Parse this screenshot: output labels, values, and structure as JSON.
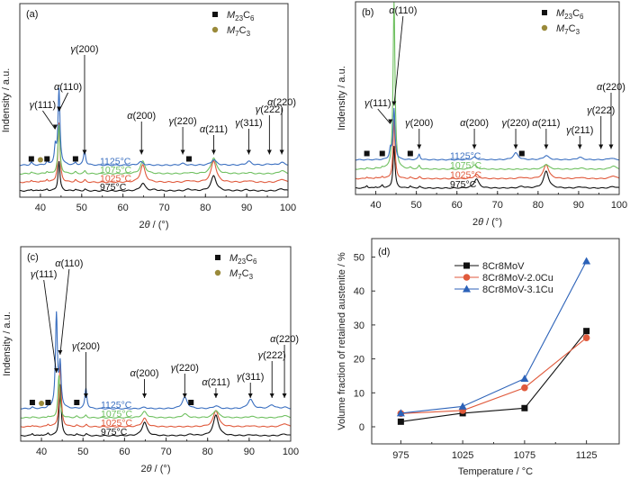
{
  "chart_data": [
    {
      "panel": "(a)",
      "type": "line",
      "title": "",
      "xlabel": "2θ / (°)",
      "ylabel": "Indensity / a.u.",
      "xlim": [
        35,
        100
      ],
      "xticks": [
        40,
        50,
        60,
        70,
        80,
        90,
        100
      ],
      "legend": {
        "position": "top-right",
        "entries": [
          {
            "marker": "square",
            "label": "M23C6",
            "color": "#111111"
          },
          {
            "marker": "circle",
            "label": "M7C3",
            "color": "#9a8a3a"
          }
        ]
      },
      "series": [
        {
          "name": "975°C",
          "color": "#111111",
          "offset": 0,
          "peaks": [
            [
              37.8,
              0.3
            ],
            [
              40,
              0.2
            ],
            [
              41.6,
              0.3
            ],
            [
              44.5,
              5.5
            ],
            [
              48.5,
              0.3
            ],
            [
              50.8,
              0.3
            ],
            [
              64.8,
              1.4
            ],
            [
              67.8,
              0.2
            ],
            [
              76,
              0.3
            ],
            [
              82,
              2.8
            ],
            [
              90,
              0.2
            ],
            [
              98.5,
              0.4
            ]
          ]
        },
        {
          "name": "1025°C",
          "color": "#e05a3c",
          "offset": 1,
          "peaks": [
            [
              37.8,
              0.4
            ],
            [
              40,
              0.2
            ],
            [
              41.6,
              0.5
            ],
            [
              44.5,
              11
            ],
            [
              48.5,
              0.4
            ],
            [
              50.8,
              0.4
            ],
            [
              64.8,
              3.2
            ],
            [
              76,
              0.3
            ],
            [
              82,
              4
            ],
            [
              90.5,
              0.3
            ],
            [
              98.5,
              0.6
            ]
          ]
        },
        {
          "name": "1075°C",
          "color": "#6fc060",
          "offset": 2,
          "peaks": [
            [
              37.8,
              0.3
            ],
            [
              41.6,
              0.4
            ],
            [
              44.5,
              9
            ],
            [
              48.5,
              0.3
            ],
            [
              50.8,
              0.5
            ],
            [
              64.8,
              2.3
            ],
            [
              76,
              0.2
            ],
            [
              82,
              3
            ],
            [
              90.5,
              0.2
            ],
            [
              98.5,
              0.6
            ]
          ]
        },
        {
          "name": "1125°C",
          "color": "#3a6fc0",
          "offset": 3,
          "peaks": [
            [
              37.8,
              0.5
            ],
            [
              41.6,
              0.6
            ],
            [
              43.6,
              3.2
            ],
            [
              44.5,
              14
            ],
            [
              48.5,
              0.4
            ],
            [
              50.7,
              2.8
            ],
            [
              64.3,
              0.6
            ],
            [
              74.5,
              0.3
            ],
            [
              82,
              1
            ],
            [
              90.5,
              0.7
            ],
            [
              95.5,
              0.2
            ],
            [
              98.5,
              0.5
            ]
          ]
        }
      ],
      "annotations": [
        {
          "label": "γ(111)",
          "x": 43.6
        },
        {
          "label": "α(110)",
          "x": 44.5
        },
        {
          "label": "γ(200)",
          "x": 50.7
        },
        {
          "label": "α(200)",
          "x": 64.5
        },
        {
          "label": "γ(220)",
          "x": 74.5
        },
        {
          "label": "α(211)",
          "x": 82
        },
        {
          "label": "γ(311)",
          "x": 90.5
        },
        {
          "label": "γ(222)",
          "x": 95.5
        },
        {
          "label": "α(220)",
          "x": 98.5
        }
      ],
      "m23c6_markers_x": [
        37.8,
        41.6,
        48.5,
        76
      ],
      "m7c3_markers_x": [
        40
      ]
    },
    {
      "panel": "(b)",
      "type": "line",
      "xlabel": "2θ / (°)",
      "ylabel": "Indensity / a.u.",
      "xlim": [
        35,
        100
      ],
      "xticks": [
        40,
        50,
        60,
        70,
        80,
        90,
        100
      ],
      "legend": {
        "position": "top-right",
        "entries": [
          {
            "marker": "square",
            "label": "M23C6",
            "color": "#111111"
          },
          {
            "marker": "circle",
            "label": "M7C3",
            "color": "#9a8a3a"
          }
        ]
      },
      "series": [
        {
          "name": "975°C",
          "color": "#111111",
          "offset": 0,
          "peaks": [
            [
              37.8,
              0.6
            ],
            [
              40,
              0.3
            ],
            [
              41.6,
              0.7
            ],
            [
              44.5,
              10
            ],
            [
              48.5,
              0.5
            ],
            [
              50.8,
              0.4
            ],
            [
              64.8,
              2.2
            ],
            [
              76,
              0.4
            ],
            [
              82,
              4
            ],
            [
              90.5,
              0.3
            ],
            [
              98.5,
              0.4
            ]
          ]
        },
        {
          "name": "1025°C",
          "color": "#e05a3c",
          "offset": 1,
          "peaks": [
            [
              37.8,
              0.4
            ],
            [
              40,
              0.3
            ],
            [
              41.6,
              0.5
            ],
            [
              44.5,
              14
            ],
            [
              48.5,
              0.3
            ],
            [
              50.8,
              0.4
            ],
            [
              64.8,
              1
            ],
            [
              76,
              0.3
            ],
            [
              82,
              3.4
            ],
            [
              90.5,
              0.3
            ],
            [
              98.5,
              0.7
            ]
          ]
        },
        {
          "name": "1075°C",
          "color": "#6fc060",
          "offset": 2,
          "peaks": [
            [
              37.8,
              0.3
            ],
            [
              40,
              0.2
            ],
            [
              41.6,
              0.4
            ],
            [
              44.5,
              40
            ],
            [
              48.5,
              0.3
            ],
            [
              50.7,
              0.8
            ],
            [
              64.3,
              1
            ],
            [
              82,
              1.2
            ],
            [
              90.5,
              0.3
            ],
            [
              98.5,
              0.8
            ]
          ]
        },
        {
          "name": "1125°C",
          "color": "#3a6fc0",
          "offset": 3,
          "peaks": [
            [
              43.6,
              2.4
            ],
            [
              44.5,
              12
            ],
            [
              50.7,
              1.3
            ],
            [
              64.3,
              0.6
            ],
            [
              74.5,
              1.6
            ],
            [
              82,
              1
            ],
            [
              90.3,
              0.6
            ],
            [
              98,
              0.4
            ]
          ]
        }
      ],
      "annotations": [
        {
          "label": "γ(111)",
          "x": 43.6
        },
        {
          "label": "α(110)",
          "x": 44.5
        },
        {
          "label": "γ(200)",
          "x": 50.7
        },
        {
          "label": "α(200)",
          "x": 64.3
        },
        {
          "label": "γ(220)",
          "x": 74.5
        },
        {
          "label": "α(211)",
          "x": 82
        },
        {
          "label": "γ(211)",
          "x": 90.3
        },
        {
          "label": "γ(222)",
          "x": 95.5
        },
        {
          "label": "α(220)",
          "x": 98
        }
      ],
      "m23c6_markers_x": [
        37.8,
        41.6,
        48.5,
        76
      ],
      "m7c3_markers_x": []
    },
    {
      "panel": "(c)",
      "type": "line",
      "xlabel": "2θ / (°)",
      "ylabel": "Indensity / a.u.",
      "xlim": [
        35,
        100
      ],
      "xticks": [
        40,
        50,
        60,
        70,
        80,
        90,
        100
      ],
      "legend": {
        "position": "top-right",
        "entries": [
          {
            "marker": "square",
            "label": "M23C6",
            "color": "#111111"
          },
          {
            "marker": "circle",
            "label": "M7C3",
            "color": "#9a8a3a"
          }
        ]
      },
      "series": [
        {
          "name": "975°C",
          "color": "#111111",
          "offset": 0,
          "peaks": [
            [
              37.8,
              0.5
            ],
            [
              40,
              0.2
            ],
            [
              41.6,
              0.5
            ],
            [
              44.5,
              11
            ],
            [
              48.5,
              0.4
            ],
            [
              50.8,
              0.4
            ],
            [
              64.8,
              2.9
            ],
            [
              76,
              0.3
            ],
            [
              82,
              4.4
            ],
            [
              90.5,
              0.2
            ],
            [
              98.5,
              0.4
            ]
          ]
        },
        {
          "name": "1025°C",
          "color": "#e05a3c",
          "offset": 1,
          "peaks": [
            [
              37.8,
              0.3
            ],
            [
              41.6,
              0.5
            ],
            [
              44.5,
              14
            ],
            [
              48.5,
              0.3
            ],
            [
              50.8,
              0.4
            ],
            [
              64.8,
              1.8
            ],
            [
              82,
              3.5
            ],
            [
              90.5,
              0.2
            ],
            [
              98.5,
              0.7
            ]
          ]
        },
        {
          "name": "1075°C",
          "color": "#6fc060",
          "offset": 2,
          "peaks": [
            [
              37.8,
              0.2
            ],
            [
              41.6,
              0.3
            ],
            [
              44.2,
              9
            ],
            [
              48.5,
              0.3
            ],
            [
              50.7,
              0.5
            ],
            [
              64.8,
              1.3
            ],
            [
              74.5,
              0.8
            ],
            [
              82,
              1.6
            ],
            [
              90.5,
              0.3
            ],
            [
              98.5,
              0.5
            ]
          ]
        },
        {
          "name": "1125°C",
          "color": "#3a6fc0",
          "offset": 3,
          "peaks": [
            [
              37.8,
              0.3
            ],
            [
              41.6,
              0.3
            ],
            [
              43.6,
              20
            ],
            [
              44.5,
              9
            ],
            [
              50.7,
              4.4
            ],
            [
              64.8,
              0.3
            ],
            [
              74.5,
              2.4
            ],
            [
              82,
              0.6
            ],
            [
              90.3,
              2
            ],
            [
              95.5,
              0.8
            ],
            [
              98.5,
              0.3
            ]
          ]
        }
      ],
      "annotations": [
        {
          "label": "γ(111)",
          "x": 43.6
        },
        {
          "label": "α(110)",
          "x": 44.5
        },
        {
          "label": "γ(200)",
          "x": 50.7
        },
        {
          "label": "α(200)",
          "x": 64.8
        },
        {
          "label": "γ(220)",
          "x": 74.5
        },
        {
          "label": "α(211)",
          "x": 82
        },
        {
          "label": "γ(311)",
          "x": 90.3
        },
        {
          "label": "γ(222)",
          "x": 95.5
        },
        {
          "label": "α(220)",
          "x": 98.5
        }
      ],
      "m23c6_markers_x": [
        37.8,
        41.6,
        48.5,
        76
      ],
      "m7c3_markers_x": [
        40
      ]
    },
    {
      "panel": "(d)",
      "type": "line",
      "xlabel": "Temperature / °C",
      "ylabel": "Volume fraction of retained austenite / %",
      "categories": [
        "975",
        "1025",
        "1075",
        "1125"
      ],
      "x": [
        975,
        1025,
        1075,
        1125
      ],
      "xlim": [
        950,
        1150
      ],
      "ylim": [
        -5,
        55
      ],
      "yticks": [
        0,
        10,
        20,
        30,
        40,
        50
      ],
      "legend": "top-center",
      "series": [
        {
          "name": "8Cr8MoV",
          "color": "#111111",
          "marker": "square",
          "values": [
            1.5,
            4.0,
            5.5,
            28.2
          ]
        },
        {
          "name": "8Cr8MoV-2.0Cu",
          "color": "#e05a3c",
          "marker": "circle",
          "values": [
            3.9,
            4.8,
            11.5,
            26.2
          ]
        },
        {
          "name": "8Cr8MoV-3.1Cu",
          "color": "#2c62b8",
          "marker": "triangle",
          "values": [
            4.0,
            6.0,
            14.2,
            48.8
          ]
        }
      ]
    }
  ],
  "temperature_labels": [
    "975°C",
    "1025°C",
    "1075°C",
    "1125°C"
  ],
  "panel_labels": [
    "(a)",
    "(b)",
    "(c)",
    "(d)"
  ],
  "legend_text": {
    "m23_main": "M",
    "m23_sub": "23",
    "m23_c": "C",
    "m23_sub2": "6",
    "m7_main": "M",
    "m7_sub": "7",
    "m7_c": "C",
    "m7_sub2": "3"
  }
}
